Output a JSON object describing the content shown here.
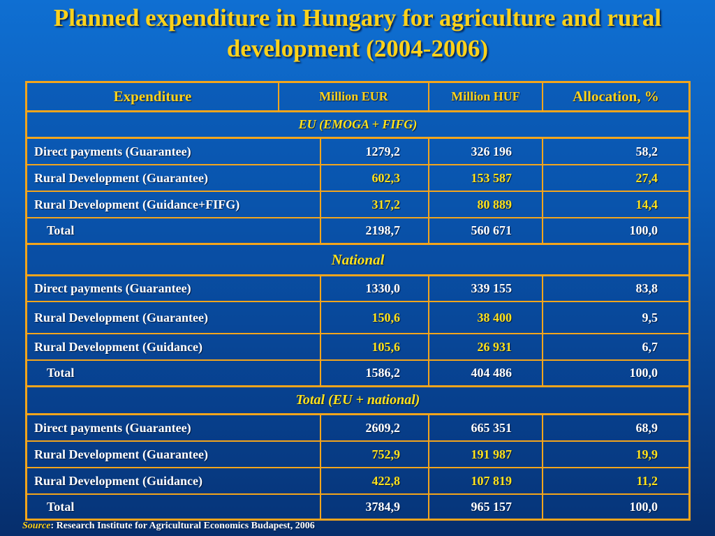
{
  "title_line1": "Planned expenditure in Hungary for agriculture and rural",
  "title_line2": "development (2004-2006)",
  "headers": {
    "expenditure": "Expenditure",
    "million_eur": "Million EUR",
    "million_huf": "Million HUF",
    "allocation": "Allocation, %"
  },
  "sections": [
    {
      "title": "EU (EMOGA + FIFG)",
      "rows": [
        {
          "label": "Direct payments (Guarantee)",
          "eur": "1279,2",
          "huf": "326 196",
          "alloc": "58,2"
        },
        {
          "label": "Rural Development (Guarantee)",
          "eur": "602,3",
          "huf": "153 587",
          "alloc": "27,4"
        },
        {
          "label": "Rural Development (Guidance+FIFG)",
          "eur": "317,2",
          "huf": "80 889",
          "alloc": "14,4"
        },
        {
          "label": "Total",
          "eur": "2198,7",
          "huf": "560 671",
          "alloc": "100,0"
        }
      ]
    },
    {
      "title": "National",
      "rows": [
        {
          "label": "Direct payments (Guarantee)",
          "eur": "1330,0",
          "huf": "339 155",
          "alloc": "83,8"
        },
        {
          "label": "Rural Development (Guarantee)",
          "eur": "150,6",
          "huf": "38 400",
          "alloc": "9,5"
        },
        {
          "label": "Rural Development (Guidance)",
          "eur": "105,6",
          "huf": "26 931",
          "alloc": "6,7"
        },
        {
          "label": "Total",
          "eur": "1586,2",
          "huf": "404 486",
          "alloc": "100,0"
        }
      ]
    },
    {
      "title": "Total (EU + national)",
      "rows": [
        {
          "label": "Direct payments (Guarantee)",
          "eur": "2609,2",
          "huf": "665 351",
          "alloc": "68,9"
        },
        {
          "label": "Rural Development (Guarantee)",
          "eur": "752,9",
          "huf": "191 987",
          "alloc": "19,9"
        },
        {
          "label": "Rural Development (Guidance)",
          "eur": "422,8",
          "huf": "107 819",
          "alloc": "11,2"
        },
        {
          "label": "Total",
          "eur": "3784,9",
          "huf": "965 157",
          "alloc": "100,0"
        }
      ]
    }
  ],
  "source": {
    "label": "Source",
    "text": ": Research Institute for Agricultural Economics Budapest, 2006"
  },
  "colors": {
    "title": "#ffd21a",
    "border": "#f3a51c",
    "highlight_values": "#ffe21c",
    "text": "#ffffff"
  }
}
